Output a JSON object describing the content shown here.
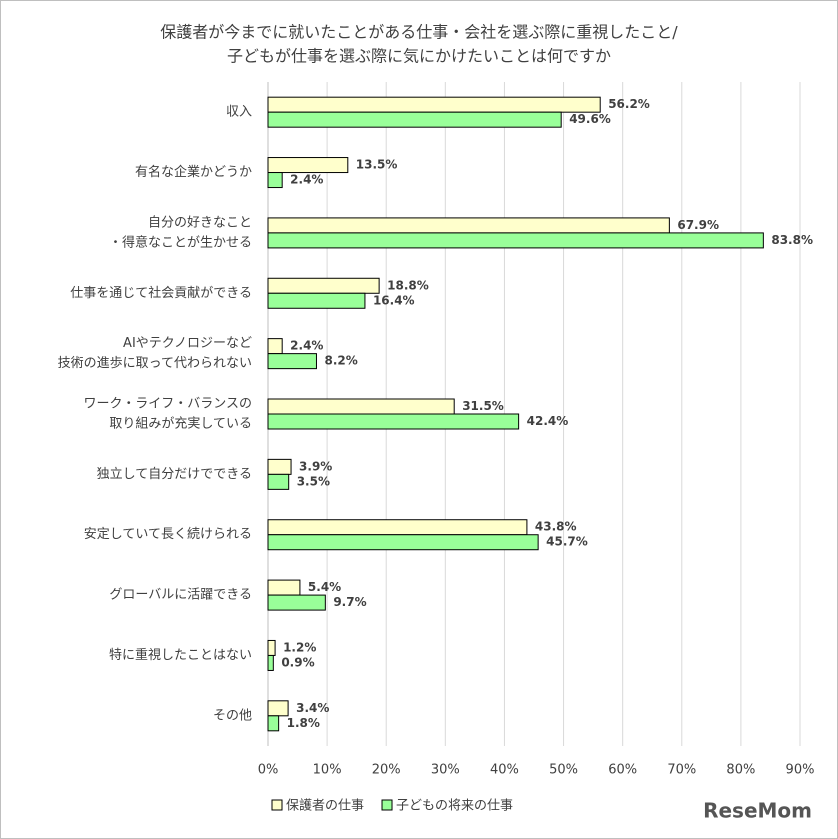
{
  "chart_data": {
    "type": "hbar",
    "title": [
      "保護者が今までに就いたことがある仕事・会社を選ぶ際に重視したこと/",
      "子どもが仕事を選ぶ際に気にかけたいことは何ですか"
    ],
    "categories": [
      [
        "収入"
      ],
      [
        "有名な企業かどうか"
      ],
      [
        "自分の好きなこと",
        "・得意なことが生かせる"
      ],
      [
        "仕事を通じて社会貢献ができる"
      ],
      [
        "AIやテクノロジーなど",
        "技術の進歩に取って代わられない"
      ],
      [
        "ワーク・ライフ・バランスの",
        "取り組みが充実している"
      ],
      [
        "独立して自分だけでできる"
      ],
      [
        "安定していて長く続けられる"
      ],
      [
        "グローバルに活躍できる"
      ],
      [
        "特に重視したことはない"
      ],
      [
        "その他"
      ]
    ],
    "series": [
      {
        "name": "保護者の仕事",
        "color": "#ffffcc",
        "values": [
          56.2,
          13.5,
          67.9,
          18.8,
          2.4,
          31.5,
          3.9,
          43.8,
          5.4,
          1.2,
          3.4
        ],
        "value_labels": [
          "56.2%",
          "13.5%",
          "67.9%",
          "18.8%",
          "2.4%",
          "31.5%",
          "3.9%",
          "43.8%",
          "5.4%",
          "1.2%",
          "3.4%"
        ]
      },
      {
        "name": "子どもの将来の仕事",
        "color": "#99ff99",
        "values": [
          49.6,
          2.4,
          83.8,
          16.4,
          8.2,
          42.4,
          3.5,
          45.7,
          9.7,
          0.9,
          1.8
        ],
        "value_labels": [
          "49.6%",
          "2.4%",
          "83.8%",
          "16.4%",
          "8.2%",
          "42.4%",
          "3.5%",
          "45.7%",
          "9.7%",
          "0.9%",
          "1.8%"
        ]
      }
    ],
    "xlim": [
      0,
      90
    ],
    "xticks": [
      {
        "value": 0,
        "label": "0%"
      },
      {
        "value": 10,
        "label": "10%"
      },
      {
        "value": 20,
        "label": "20%"
      },
      {
        "value": 30,
        "label": "30%"
      },
      {
        "value": 40,
        "label": "40%"
      },
      {
        "value": 50,
        "label": "50%"
      },
      {
        "value": 60,
        "label": "60%"
      },
      {
        "value": 70,
        "label": "70%"
      },
      {
        "value": 80,
        "label": "80%"
      },
      {
        "value": 90,
        "label": "90%"
      }
    ],
    "grid": true,
    "legend": "bottom",
    "watermark": "ReseMom"
  }
}
